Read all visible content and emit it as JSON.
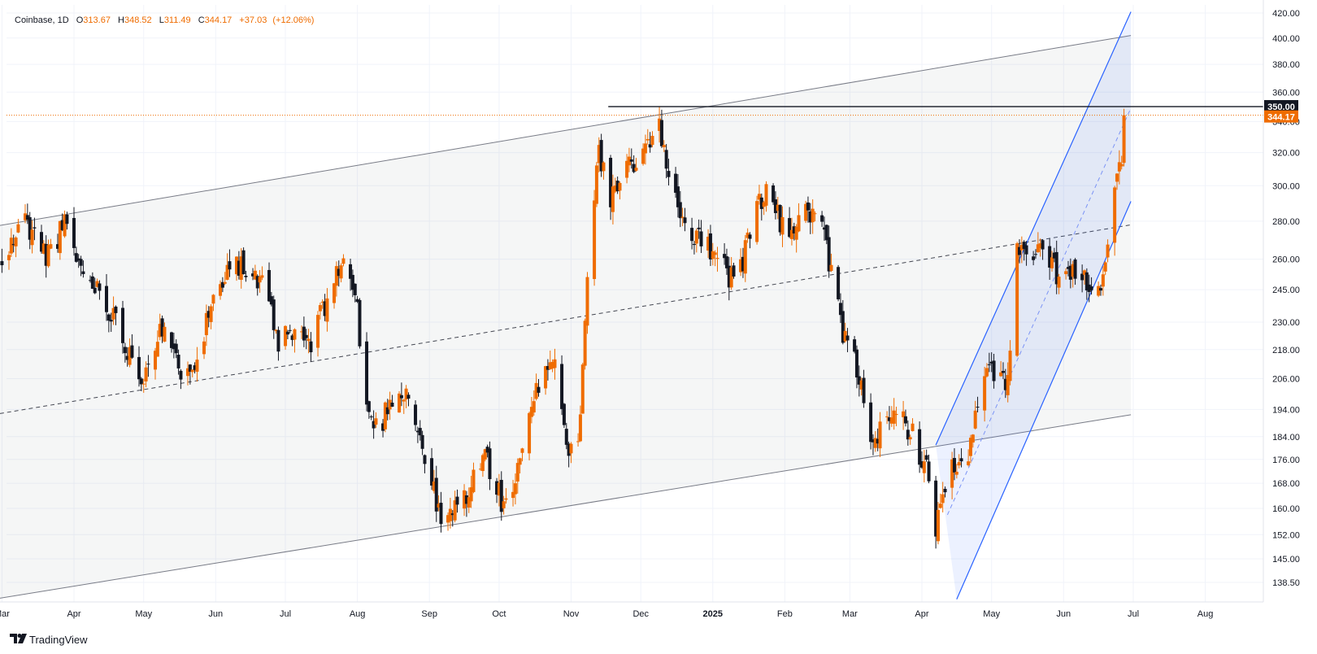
{
  "legend": {
    "symbol": "Coinbase",
    "interval": "1D",
    "open_label": "O",
    "open": "313.67",
    "high_label": "H",
    "high": "348.52",
    "low_label": "L",
    "low": "311.49",
    "close_label": "C",
    "close": "344.17",
    "change": "+37.03",
    "change_pct": "(+12.06%)"
  },
  "brand": {
    "name": "TradingView",
    "logo_icon": "tradingview-logo-icon"
  },
  "price_tags": {
    "level": "350.00",
    "last": "344.17"
  },
  "colors": {
    "up": "#ef6c00",
    "down": "#131722",
    "channel_blue": "#2962ff",
    "last_price": "#ef6c00"
  },
  "chart_data": {
    "type": "candlestick",
    "scale": "log",
    "y_ticks": [
      420,
      400,
      380,
      360,
      340,
      320,
      300,
      280,
      260,
      245,
      230,
      218,
      206,
      194,
      184,
      176,
      168,
      160,
      152,
      145,
      138.5
    ],
    "y_tick_labels": [
      "420.00",
      "400.00",
      "380.00",
      "360.00",
      "340.00",
      "320.00",
      "300.00",
      "280.00",
      "260.00",
      "245.00",
      "230.00",
      "218.00",
      "206.00",
      "194.00",
      "184.00",
      "176.00",
      "168.00",
      "160.00",
      "152.00",
      "145.00",
      "138.50"
    ],
    "x_labels": [
      "Mar",
      "Apr",
      "May",
      "Jun",
      "Jul",
      "Aug",
      "Sep",
      "Oct",
      "Nov",
      "Dec",
      "2025",
      "Feb",
      "Mar",
      "Apr",
      "May",
      "Jun",
      "Jul",
      "Aug"
    ],
    "x_label_dates": [
      "2024-03-01",
      "2024-04-01",
      "2024-05-01",
      "2024-06-01",
      "2024-07-01",
      "2024-08-01",
      "2024-09-01",
      "2024-10-01",
      "2024-11-01",
      "2024-12-01",
      "2025-01-01",
      "2025-02-01",
      "2025-03-01",
      "2025-04-01",
      "2025-05-01",
      "2025-06-01",
      "2025-07-01",
      "2025-08-01"
    ],
    "x_range": [
      "2024-02-26",
      "2025-08-18"
    ],
    "price_key": [
      "2024-03-01",
      255,
      "2024-03-10",
      282,
      "2024-03-20",
      262,
      "2024-03-28",
      278,
      "2024-04-05",
      252,
      "2024-04-12",
      245,
      "2024-04-20",
      228,
      "2024-04-30",
      206,
      "2024-05-08",
      228,
      "2024-05-16",
      210,
      "2024-05-24",
      215,
      "2024-06-01",
      245,
      "2024-06-08",
      262,
      "2024-06-15",
      252,
      "2024-06-22",
      245,
      "2024-06-28",
      221,
      "2024-07-05",
      225,
      "2024-07-12",
      220,
      "2024-07-20",
      245,
      "2024-07-27",
      262,
      "2024-08-01",
      235,
      "2024-08-05",
      194,
      "2024-08-10",
      186,
      "2024-08-15",
      198,
      "2024-08-22",
      202,
      "2024-08-29",
      180,
      "2024-09-03",
      165,
      "2024-09-06",
      155,
      "2024-09-12",
      160,
      "2024-09-18",
      166,
      "2024-09-25",
      178,
      "2024-10-02",
      162,
      "2024-10-08",
      168,
      "2024-10-15",
      193,
      "2024-10-20",
      212,
      "2024-10-26",
      214,
      "2024-10-30",
      180,
      "2024-11-04",
      180,
      "2024-11-08",
      255,
      "2024-11-13",
      322,
      "2024-11-18",
      290,
      "2024-11-25",
      310,
      "2024-12-03",
      322,
      "2024-12-08",
      340,
      "2024-12-14",
      304,
      "2024-12-20",
      278,
      "2024-12-27",
      268,
      "2025-01-03",
      265,
      "2025-01-08",
      252,
      "2025-01-13",
      255,
      "2025-01-20",
      290,
      "2025-01-25",
      298,
      "2025-02-01",
      272,
      "2025-02-08",
      283,
      "2025-02-15",
      286,
      "2025-02-20",
      258,
      "2025-02-26",
      225,
      "2025-03-04",
      210,
      "2025-03-10",
      186,
      "2025-03-15",
      185,
      "2025-03-22",
      193,
      "2025-03-28",
      185,
      "2025-04-03",
      172,
      "2025-04-07",
      154,
      "2025-04-12",
      173,
      "2025-04-17",
      172,
      "2025-04-22",
      180,
      "2025-04-27",
      206,
      "2025-05-03",
      210,
      "2025-05-08",
      205,
      "2025-05-12",
      263,
      "2025-05-18",
      262,
      "2025-05-24",
      262,
      "2025-05-30",
      252,
      "2025-06-06",
      252,
      "2025-06-13",
      248,
      "2025-06-17",
      240,
      "2025-06-19",
      255,
      "2025-06-21",
      290,
      "2025-06-24",
      305,
      "2025-06-26",
      308,
      "2025-06-27",
      344.17
    ],
    "last_close": 344.17,
    "horizontal_level": {
      "price": 350,
      "from": "2024-11-17",
      "to": "2025-08-18"
    },
    "main_channel": {
      "upper": [
        [
          "2024-02-26",
          277
        ],
        [
          "2025-06-30",
          402
        ]
      ],
      "middle": [
        [
          "2024-02-26",
          192
        ],
        [
          "2025-06-30",
          278
        ]
      ],
      "lower": [
        [
          "2024-02-26",
          134
        ],
        [
          "2025-06-30",
          192
        ]
      ]
    },
    "blue_channel": {
      "upper": [
        [
          "2025-04-07",
          181
        ],
        [
          "2025-06-30",
          421
        ]
      ],
      "middle": [
        [
          "2025-04-12",
          158
        ],
        [
          "2025-06-30",
          349
        ]
      ],
      "lower": [
        [
          "2025-04-16",
          134
        ],
        [
          "2025-06-30",
          291
        ]
      ]
    }
  }
}
